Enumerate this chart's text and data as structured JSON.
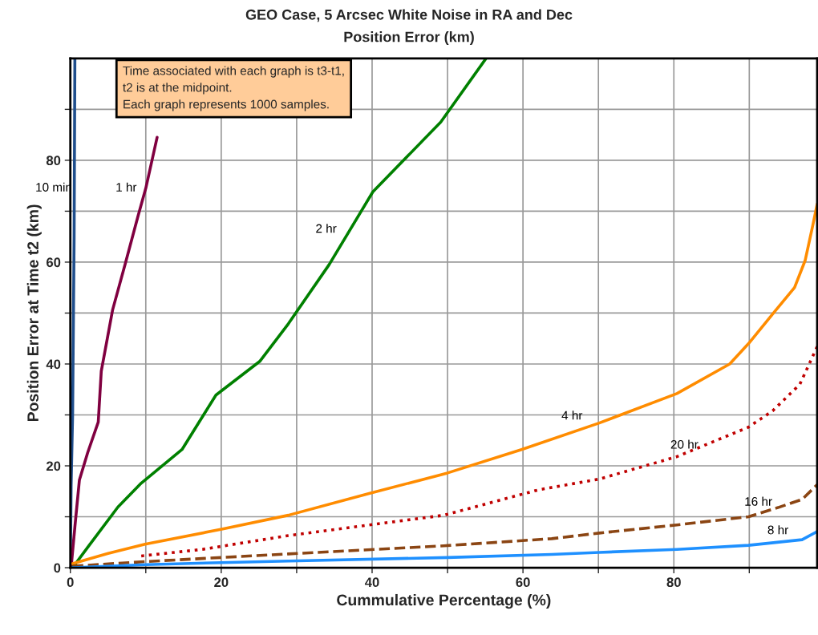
{
  "chart_data": {
    "type": "line",
    "title": "GEO Case, 5 Arcsec White Noise in RA and Dec",
    "subtitle": "Position Error (km)",
    "xlabel": "Cummulative Percentage (%)",
    "ylabel": "Position Error at Time t2 (km)",
    "annotations": [
      "Time associated with each graph is t3-t1,\nt2 is at the midpoint.\nEach graph represents 1000 samples."
    ],
    "xlim": [
      0,
      99
    ],
    "ylim": [
      0,
      100
    ],
    "xticks": [
      0,
      {
        "value": 10,
        "label": null
      },
      20,
      {
        "value": 30,
        "label": null
      },
      40,
      {
        "value": 50,
        "label": null
      },
      60,
      {
        "value": 70,
        "label": null
      },
      80,
      {
        "value": 90,
        "label": null
      }
    ],
    "yticks": [
      0,
      {
        "value": 10,
        "label": null
      },
      20,
      {
        "value": 30,
        "label": null
      },
      40,
      {
        "value": 50,
        "label": null
      },
      60,
      {
        "value": 70,
        "label": null
      },
      80,
      {
        "value": 90,
        "label": null
      }
    ],
    "grid": true,
    "legend": false,
    "marker": "none",
    "series": [
      {
        "name": "10 min",
        "color": "#1f4e8c",
        "line_style": "solid",
        "x": [
          0,
          0.1,
          0.3,
          0.5,
          0.6
        ],
        "values": [
          0,
          16,
          30,
          65,
          100
        ]
      },
      {
        "name": "1 hr",
        "color": "#800040",
        "line_style": "solid",
        "x": [
          0.1,
          0.6,
          1.2,
          2.3,
          3.7,
          4.1,
          5.6,
          7.3,
          9.0,
          10.0,
          11.5
        ],
        "values": [
          0,
          8,
          17.2,
          22.6,
          28.6,
          38.6,
          50.6,
          59.8,
          69.2,
          74.5,
          84.5
        ]
      },
      {
        "name": "2 hr",
        "color": "#008000",
        "line_style": "solid",
        "x": [
          0.3,
          2.3,
          6.3,
          9.4,
          14.8,
          19.3,
          25.1,
          28.9,
          34.3,
          40.1,
          49.1,
          55.1
        ],
        "values": [
          0,
          4.0,
          11.9,
          16.6,
          23.2,
          33.9,
          40.5,
          47.9,
          59.5,
          73.8,
          87.5,
          100
        ]
      },
      {
        "name": "4 hr",
        "color": "#ff8c00",
        "line_style": "solid",
        "x": [
          0.3,
          5,
          9.9,
          20.2,
          28.9,
          39.7,
          50,
          59.8,
          70.1,
          80.4,
          87.4,
          89.9,
          93.1,
          96,
          97.4,
          98.4,
          99
        ],
        "values": [
          0.8,
          2.8,
          4.6,
          7.6,
          10.3,
          14.6,
          18.6,
          23.2,
          28.4,
          34.2,
          40,
          44,
          49.8,
          55,
          60.3,
          67.1,
          71.4
        ]
      },
      {
        "name": "20 hr",
        "color": "#c00000",
        "line_style": "dotted",
        "x": [
          9.4,
          17.5,
          28.9,
          39.2,
          49.5,
          62.1,
          70.1,
          80.4,
          89.9,
          93.1,
          96.7,
          99
        ],
        "values": [
          2.3,
          3.6,
          6.3,
          8.3,
          10.3,
          15.3,
          17.4,
          21.8,
          27.6,
          30.8,
          36,
          43.4
        ]
      },
      {
        "name": "16 hr",
        "color": "#8b4513",
        "line_style": "dashed",
        "x": [
          0.3,
          10,
          20,
          28.9,
          49.5,
          63.8,
          70.1,
          80.4,
          89.9,
          93.8,
          97,
          99
        ],
        "values": [
          0.3,
          1.2,
          2,
          2.7,
          4.3,
          5.7,
          6.8,
          8.4,
          10,
          11.8,
          13.4,
          16.3
        ]
      },
      {
        "name": "8 hr",
        "color": "#1e90ff",
        "line_style": "solid",
        "x": [
          0.3,
          10,
          20,
          28.9,
          50,
          63.8,
          70.1,
          80.4,
          89.9,
          97,
          99
        ],
        "values": [
          0,
          0.6,
          1.0,
          1.3,
          2,
          2.6,
          3.0,
          3.6,
          4.4,
          5.5,
          7.1
        ]
      }
    ]
  }
}
